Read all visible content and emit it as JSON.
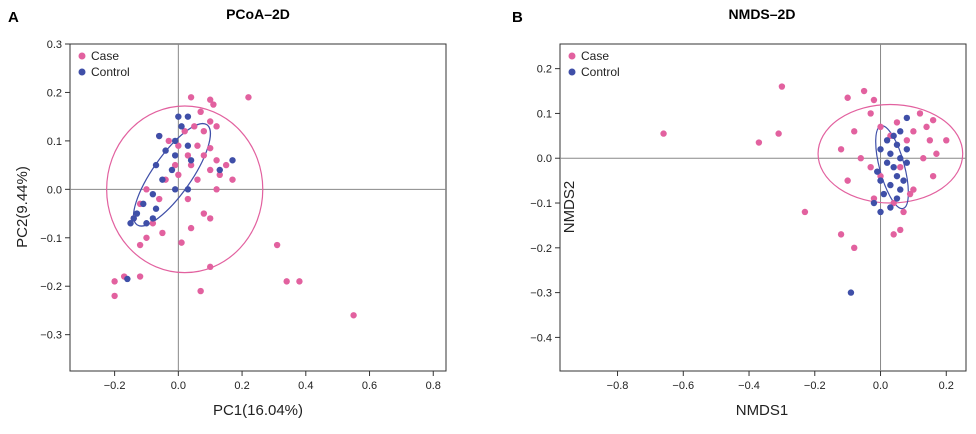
{
  "colors": {
    "case": "#e2619f",
    "control": "#3f4fa8"
  },
  "chart_data": [
    {
      "panel": "A",
      "type": "scatter",
      "title": "PCoA–2D",
      "xlabel": "PC1(16.04%)",
      "ylabel": "PC2(9.44%)",
      "xlim": [
        -0.34,
        0.84
      ],
      "ylim": [
        -0.375,
        0.3
      ],
      "xticks": [
        -0.2,
        0.0,
        0.2,
        0.4,
        0.6,
        0.8
      ],
      "xtick_labels": [
        "−0.2",
        "0.0",
        "0.2",
        "0.4",
        "0.6",
        "0.8"
      ],
      "yticks": [
        0.3,
        0.2,
        0.1,
        0.0,
        -0.1,
        -0.2,
        -0.3
      ],
      "ytick_labels": [
        "0.3",
        "0.2",
        "0.1",
        "0.0",
        "−0.1",
        "−0.2",
        "−0.3"
      ],
      "legend": [
        "Case",
        "Control"
      ],
      "legend_position": "top-left",
      "reference_lines": {
        "x": 0,
        "y": 0
      },
      "ellipses": [
        {
          "series": "Case",
          "center": [
            0.02,
            0.0
          ],
          "rx": 0.245,
          "ry": 0.172,
          "angle": 0
        },
        {
          "series": "Control",
          "center": [
            -0.02,
            0.03
          ],
          "rx": 0.152,
          "ry": 0.048,
          "angle": 55
        }
      ],
      "series": [
        {
          "name": "Case",
          "points": [
            [
              0.04,
              0.19
            ],
            [
              0.1,
              0.185
            ],
            [
              0.22,
              0.19
            ],
            [
              0.11,
              0.175
            ],
            [
              0.07,
              0.16
            ],
            [
              0.1,
              0.14
            ],
            [
              0.12,
              0.13
            ],
            [
              0.05,
              0.13
            ],
            [
              0.02,
              0.12
            ],
            [
              0.08,
              0.12
            ],
            [
              -0.06,
              0.11
            ],
            [
              -0.03,
              0.1
            ],
            [
              0.0,
              0.09
            ],
            [
              0.06,
              0.09
            ],
            [
              0.1,
              0.085
            ],
            [
              0.03,
              0.07
            ],
            [
              0.08,
              0.07
            ],
            [
              0.12,
              0.06
            ],
            [
              -0.01,
              0.05
            ],
            [
              0.04,
              0.05
            ],
            [
              0.1,
              0.04
            ],
            [
              0.15,
              0.05
            ],
            [
              0.13,
              0.03
            ],
            [
              0.0,
              0.03
            ],
            [
              0.06,
              0.02
            ],
            [
              -0.04,
              0.02
            ],
            [
              0.17,
              0.02
            ],
            [
              0.12,
              0.0
            ],
            [
              -0.1,
              0.0
            ],
            [
              0.03,
              -0.02
            ],
            [
              -0.06,
              -0.02
            ],
            [
              -0.12,
              -0.03
            ],
            [
              0.08,
              -0.05
            ],
            [
              -0.14,
              -0.06
            ],
            [
              -0.08,
              -0.07
            ],
            [
              0.1,
              -0.06
            ],
            [
              0.04,
              -0.08
            ],
            [
              -0.05,
              -0.09
            ],
            [
              -0.1,
              -0.1
            ],
            [
              0.01,
              -0.11
            ],
            [
              -0.12,
              -0.115
            ],
            [
              0.31,
              -0.115
            ],
            [
              0.1,
              -0.16
            ],
            [
              -0.12,
              -0.18
            ],
            [
              -0.17,
              -0.18
            ],
            [
              -0.2,
              -0.19
            ],
            [
              0.34,
              -0.19
            ],
            [
              0.38,
              -0.19
            ],
            [
              -0.2,
              -0.22
            ],
            [
              0.07,
              -0.21
            ],
            [
              0.55,
              -0.26
            ]
          ]
        },
        {
          "name": "Control",
          "points": [
            [
              0.0,
              0.15
            ],
            [
              0.03,
              0.15
            ],
            [
              0.01,
              0.13
            ],
            [
              -0.06,
              0.11
            ],
            [
              -0.01,
              0.1
            ],
            [
              0.03,
              0.09
            ],
            [
              -0.04,
              0.08
            ],
            [
              -0.01,
              0.07
            ],
            [
              0.04,
              0.06
            ],
            [
              0.17,
              0.06
            ],
            [
              -0.07,
              0.05
            ],
            [
              -0.02,
              0.04
            ],
            [
              0.13,
              0.04
            ],
            [
              -0.05,
              0.02
            ],
            [
              -0.01,
              0.0
            ],
            [
              -0.08,
              -0.01
            ],
            [
              0.03,
              0.0
            ],
            [
              -0.11,
              -0.03
            ],
            [
              -0.07,
              -0.04
            ],
            [
              -0.13,
              -0.05
            ],
            [
              -0.08,
              -0.06
            ],
            [
              -0.14,
              -0.06
            ],
            [
              -0.1,
              -0.07
            ],
            [
              -0.15,
              -0.07
            ],
            [
              -0.16,
              -0.185
            ]
          ]
        }
      ]
    },
    {
      "panel": "B",
      "type": "scatter",
      "title": "NMDS–2D",
      "xlabel": "NMDS1",
      "ylabel": "NMDS2",
      "xlim": [
        -0.975,
        0.26
      ],
      "ylim": [
        -0.475,
        0.255
      ],
      "xticks": [
        -0.8,
        -0.6,
        -0.4,
        -0.2,
        0.0,
        0.2
      ],
      "xtick_labels": [
        "−0.8",
        "−0.6",
        "−0.4",
        "−0.2",
        "0.0",
        "0.2"
      ],
      "yticks": [
        0.2,
        0.1,
        0.0,
        -0.1,
        -0.2,
        -0.3,
        -0.4
      ],
      "ytick_labels": [
        "0.2",
        "0.1",
        "0.0",
        "−0.1",
        "−0.2",
        "−0.3",
        "−0.4"
      ],
      "legend": [
        "Case",
        "Control"
      ],
      "legend_position": "top-left",
      "reference_lines": {
        "x": 0,
        "y": 0
      },
      "ellipses": [
        {
          "series": "Case",
          "center": [
            0.03,
            0.01
          ],
          "rx": 0.22,
          "ry": 0.11,
          "angle": 0
        },
        {
          "series": "Control",
          "center": [
            0.035,
            -0.02
          ],
          "rx": 0.032,
          "ry": 0.11,
          "angle": 15
        }
      ],
      "series": [
        {
          "name": "Case",
          "points": [
            [
              -0.66,
              0.055
            ],
            [
              -0.37,
              0.035
            ],
            [
              -0.3,
              0.16
            ],
            [
              -0.31,
              0.055
            ],
            [
              -0.05,
              0.15
            ],
            [
              -0.1,
              0.135
            ],
            [
              -0.02,
              0.13
            ],
            [
              0.12,
              0.1
            ],
            [
              0.16,
              0.085
            ],
            [
              0.14,
              0.07
            ],
            [
              0.05,
              0.08
            ],
            [
              -0.03,
              0.1
            ],
            [
              0.0,
              0.07
            ],
            [
              0.1,
              0.06
            ],
            [
              0.08,
              0.04
            ],
            [
              0.2,
              0.04
            ],
            [
              0.15,
              0.04
            ],
            [
              -0.12,
              0.02
            ],
            [
              0.17,
              0.01
            ],
            [
              -0.06,
              0.0
            ],
            [
              0.13,
              0.0
            ],
            [
              0.06,
              -0.02
            ],
            [
              -0.03,
              -0.02
            ],
            [
              0.16,
              -0.04
            ],
            [
              -0.1,
              -0.05
            ],
            [
              0.1,
              -0.07
            ],
            [
              -0.02,
              -0.09
            ],
            [
              0.04,
              -0.1
            ],
            [
              -0.23,
              -0.12
            ],
            [
              0.07,
              -0.12
            ],
            [
              -0.12,
              -0.17
            ],
            [
              0.06,
              -0.16
            ],
            [
              0.04,
              -0.17
            ],
            [
              -0.08,
              -0.2
            ],
            [
              0.09,
              -0.08
            ],
            [
              -0.08,
              0.06
            ],
            [
              0.0,
              -0.04
            ],
            [
              0.03,
              0.05
            ]
          ]
        },
        {
          "name": "Control",
          "points": [
            [
              0.08,
              0.09
            ],
            [
              0.06,
              0.06
            ],
            [
              0.04,
              0.05
            ],
            [
              0.02,
              0.04
            ],
            [
              0.05,
              0.03
            ],
            [
              0.08,
              0.02
            ],
            [
              0.0,
              0.02
            ],
            [
              0.03,
              0.01
            ],
            [
              0.06,
              0.0
            ],
            [
              0.08,
              -0.01
            ],
            [
              0.02,
              -0.01
            ],
            [
              0.04,
              -0.02
            ],
            [
              -0.01,
              -0.03
            ],
            [
              0.05,
              -0.04
            ],
            [
              0.07,
              -0.05
            ],
            [
              0.0,
              -0.05
            ],
            [
              0.03,
              -0.06
            ],
            [
              0.06,
              -0.07
            ],
            [
              0.01,
              -0.08
            ],
            [
              0.05,
              -0.09
            ],
            [
              -0.02,
              -0.1
            ],
            [
              0.03,
              -0.11
            ],
            [
              0.0,
              -0.12
            ],
            [
              -0.09,
              -0.3
            ]
          ]
        }
      ]
    }
  ]
}
